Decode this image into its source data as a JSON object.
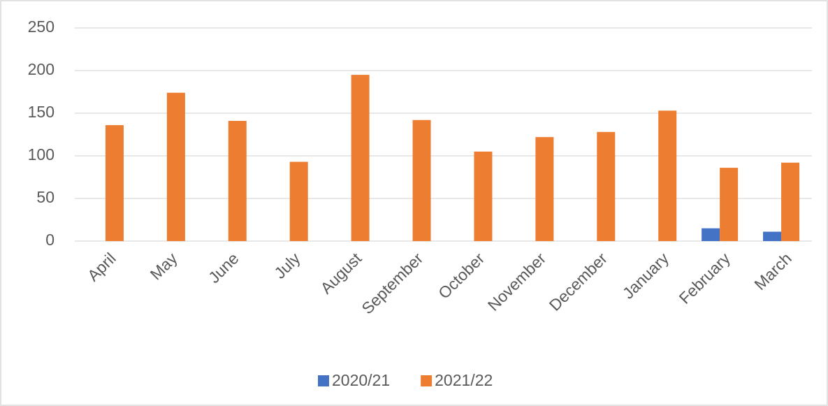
{
  "chart_data": {
    "type": "bar",
    "categories": [
      "April",
      "May",
      "June",
      "July",
      "August",
      "September",
      "October",
      "November",
      "December",
      "January",
      "February",
      "March"
    ],
    "series": [
      {
        "name": "2020/21",
        "color": "#4472c4",
        "values": [
          null,
          null,
          null,
          null,
          null,
          null,
          null,
          null,
          null,
          null,
          15,
          11
        ]
      },
      {
        "name": "2021/22",
        "color": "#ed7d31",
        "values": [
          136,
          174,
          141,
          93,
          195,
          142,
          105,
          122,
          128,
          153,
          86,
          92
        ]
      }
    ],
    "ylim": [
      0,
      250
    ],
    "yticks": [
      0,
      50,
      100,
      150,
      200,
      250
    ],
    "grid": true,
    "legend": "bottom"
  }
}
